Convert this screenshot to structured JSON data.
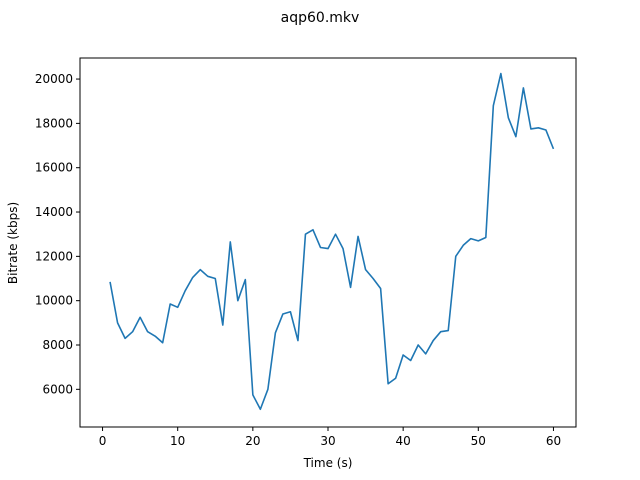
{
  "chart_data": {
    "type": "line",
    "title": "aqp60.mkv",
    "xlabel": "Time (s)",
    "ylabel": "Bitrate (kbps)",
    "xlim": [
      -3,
      63
    ],
    "ylim": [
      4300,
      20950
    ],
    "xticks": [
      0,
      10,
      20,
      30,
      40,
      50,
      60
    ],
    "yticks": [
      6000,
      8000,
      10000,
      12000,
      14000,
      16000,
      18000,
      20000
    ],
    "grid": false,
    "legend": "none",
    "series": [
      {
        "color": "#1f77b4",
        "x": [
          1,
          2,
          3,
          4,
          5,
          6,
          7,
          8,
          9,
          10,
          11,
          12,
          13,
          14,
          15,
          16,
          17,
          18,
          19,
          20,
          21,
          22,
          23,
          24,
          25,
          26,
          27,
          28,
          29,
          30,
          31,
          32,
          33,
          34,
          35,
          36,
          37,
          38,
          39,
          40,
          41,
          42,
          43,
          44,
          45,
          46,
          47,
          48,
          49,
          50,
          51,
          52,
          53,
          54,
          55,
          56,
          57,
          58,
          59,
          60
        ],
        "values": [
          10850,
          9000,
          8300,
          8600,
          9250,
          8600,
          8400,
          8100,
          9850,
          9700,
          10450,
          11050,
          11400,
          11100,
          11000,
          8900,
          12650,
          10000,
          10950,
          5750,
          5100,
          6000,
          8550,
          9400,
          9500,
          8200,
          13000,
          13200,
          12400,
          12350,
          13000,
          12350,
          10600,
          12900,
          11400,
          11000,
          10550,
          6250,
          6500,
          7550,
          7300,
          8000,
          7600,
          8200,
          8600,
          8650,
          12000,
          12500,
          12800,
          12700,
          12850,
          18800,
          20250,
          18250,
          17400,
          19600,
          17750,
          17800,
          17700,
          16850
        ]
      }
    ]
  }
}
